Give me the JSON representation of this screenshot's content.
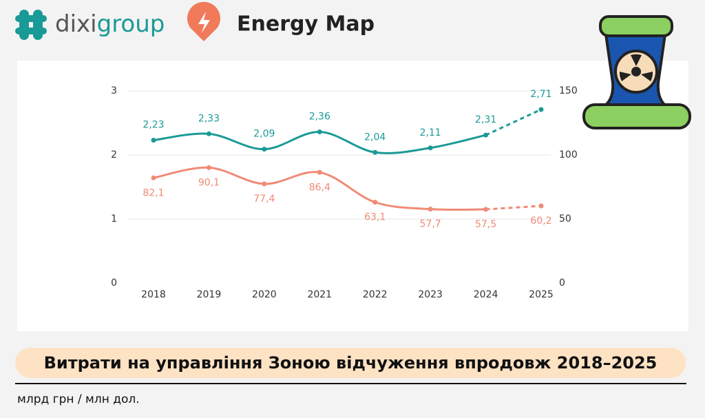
{
  "header": {
    "brand_dark": "dixi",
    "brand_teal": "group",
    "product": "Energy Map"
  },
  "chart_data": {
    "type": "line",
    "title": "Витрати на управління Зоною відчуження впродовж 2018–2025",
    "subtitle": "млрд грн / млн дол.",
    "categories": [
      "2018",
      "2019",
      "2020",
      "2021",
      "2022",
      "2023",
      "2024",
      "2025"
    ],
    "dashed_from_category": "2024",
    "series": [
      {
        "color": "#1a9a96",
        "values": [
          2.23,
          2.33,
          2.09,
          2.36,
          2.04,
          2.11,
          2.31,
          2.71
        ],
        "value_labels": [
          "2,23",
          "2,33",
          "2,09",
          "2,36",
          "2,04",
          "2,11",
          "2,31",
          "2,71"
        ]
      },
      {
        "color": "#f08a76",
        "axis": "y2",
        "values": [
          82.1,
          90.1,
          77.4,
          86.4,
          63.1,
          57.7,
          57.5,
          60.2
        ],
        "value_labels": [
          "82,1",
          "90,1",
          "77,4",
          "86,4",
          "63,1",
          "57,7",
          "57,5",
          "60,2"
        ]
      }
    ],
    "ylim": [
      0,
      3
    ],
    "yticks": [
      0,
      1,
      2,
      3
    ],
    "y2lim": [
      0,
      150
    ],
    "y2ticks": [
      0,
      50,
      100,
      150
    ],
    "grid": true
  }
}
